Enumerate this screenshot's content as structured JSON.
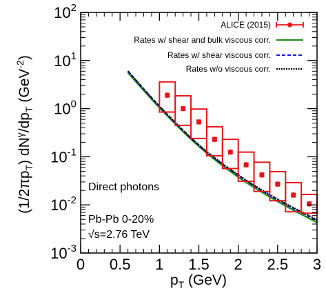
{
  "chart_data": {
    "type": "scatter",
    "xlabel": "pT (GeV)",
    "ylabel": "(1/2πpT) dNγ/dpT (GeV-2)",
    "xlim": [
      0,
      3
    ],
    "ylim": [
      0.001,
      100
    ],
    "yscale": "log",
    "x_ticks": [
      "0",
      "0.5",
      "1",
      "1.5",
      "2",
      "2.5",
      "3"
    ],
    "y_ticks": [
      {
        "base": "10",
        "exp": "-3"
      },
      {
        "base": "10",
        "exp": "-2"
      },
      {
        "base": "10",
        "exp": "-1"
      },
      {
        "base": "10",
        "exp": "0"
      },
      {
        "base": "10",
        "exp": "1"
      },
      {
        "base": "10",
        "exp": "2"
      }
    ],
    "legend_position": "top-right",
    "annotations": [
      "Direct photons",
      "Pb-Pb 0-20%",
      "√s=2.76 TeV"
    ],
    "series": [
      {
        "name": "ALICE (2015)",
        "kind": "data_points",
        "color": "#e8141b",
        "x": [
          1.1,
          1.3,
          1.5,
          1.7,
          1.9,
          2.1,
          2.3,
          2.5,
          2.7,
          2.9
        ],
        "y": [
          1.9,
          1.0,
          0.53,
          0.23,
          0.125,
          0.068,
          0.042,
          0.027,
          0.016,
          0.0105
        ],
        "x_err": [
          0.1,
          0.1,
          0.1,
          0.1,
          0.1,
          0.1,
          0.1,
          0.1,
          0.1,
          0.1
        ],
        "sys_low": [
          0.85,
          0.45,
          0.24,
          0.105,
          0.057,
          0.031,
          0.019,
          0.0122,
          0.0072,
          0.0067
        ],
        "sys_high": [
          3.6,
          1.85,
          0.98,
          0.42,
          0.23,
          0.125,
          0.077,
          0.049,
          0.029,
          0.0165
        ]
      },
      {
        "name": "Rates w/ shear and bulk viscous corr.",
        "kind": "curve",
        "color": "#1e8c1e",
        "x": [
          0.6,
          1.0,
          1.5,
          2.0,
          2.5,
          3.0
        ],
        "y": [
          5.6,
          1.05,
          0.165,
          0.038,
          0.0118,
          0.0043
        ]
      },
      {
        "name": "Rates w/ shear viscous corr.",
        "kind": "curve",
        "color": "#1a1ae6",
        "x": [
          0.6,
          1.0,
          1.5,
          2.0,
          2.5,
          3.0
        ],
        "y": [
          6.0,
          1.12,
          0.175,
          0.041,
          0.0128,
          0.0047
        ]
      },
      {
        "name": "Rates w/o viscous corr.",
        "kind": "curve",
        "color": "#000000",
        "x": [
          0.6,
          1.0,
          1.5,
          2.0,
          2.5,
          3.0
        ],
        "y": [
          6.0,
          1.12,
          0.176,
          0.042,
          0.0131,
          0.0049
        ]
      }
    ]
  }
}
